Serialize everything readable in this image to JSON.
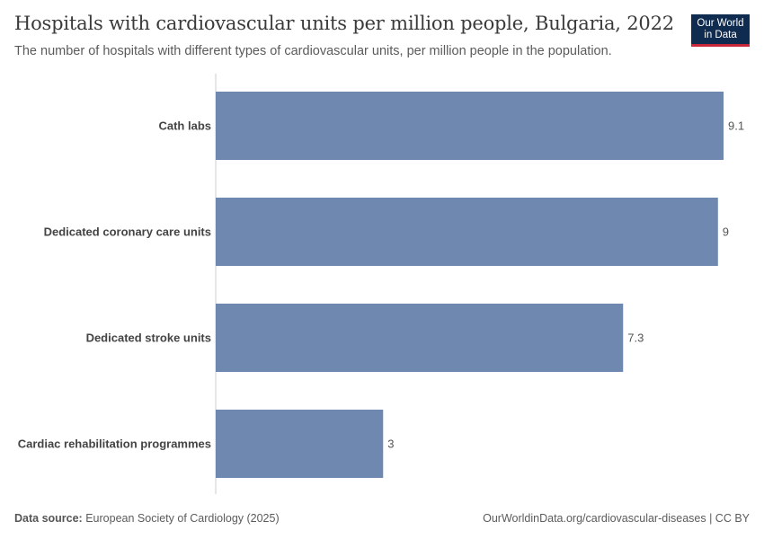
{
  "header": {
    "title": "Hospitals with cardiovascular units per million people, Bulgaria, 2022",
    "subtitle": "The number of hospitals with different types of cardiovascular units, per million people in the population."
  },
  "logo": {
    "line1": "Our World",
    "line2": "in Data",
    "bg_color": "#0f2b4f",
    "accent_color": "#c8273a"
  },
  "footer": {
    "source_label": "Data source:",
    "source_text": "European Society of Cardiology (2025)",
    "right_text": "OurWorldinData.org/cardiovascular-diseases | CC BY"
  },
  "chart_data": {
    "type": "bar",
    "orientation": "horizontal",
    "categories": [
      "Cath labs",
      "Dedicated coronary care units",
      "Dedicated stroke units",
      "Cardiac rehabilitation programmes"
    ],
    "values": [
      9.1,
      9,
      7.3,
      3
    ],
    "value_labels": [
      "9.1",
      "9",
      "7.3",
      "3"
    ],
    "xlim": [
      0,
      9.1
    ],
    "bar_color": "#6f88b0",
    "grid": false
  }
}
